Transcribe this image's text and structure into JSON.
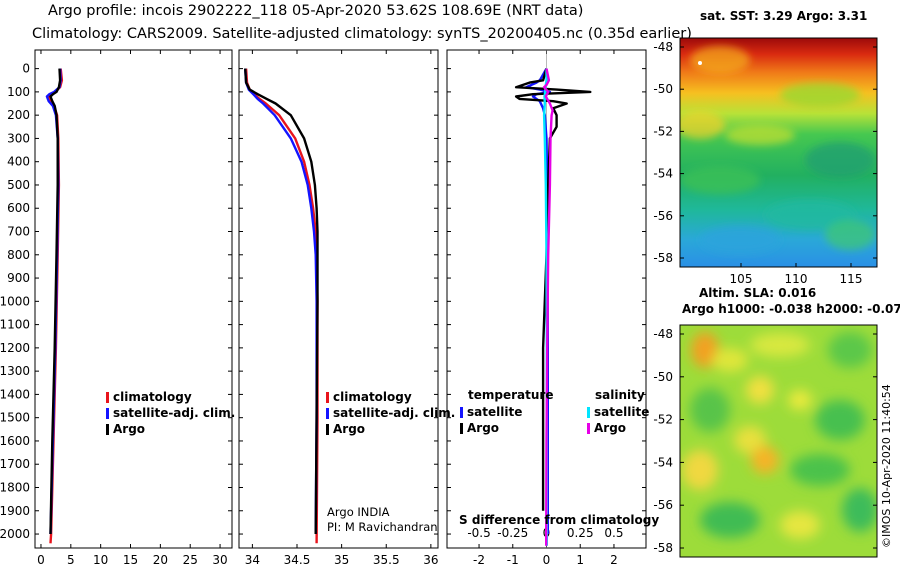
{
  "title": {
    "line1": "Argo profile: incois 2902222_118 05-Apr-2020 53.62S 108.69E (NRT data)",
    "line2": "Climatology: CARS2009. Satellite-adjusted climatology: synTS_20200405.nc (0.35d earlier)"
  },
  "colors": {
    "climatology": "#e8141c",
    "satellite": "#1414ff",
    "argo": "#000000",
    "satellite_sal": "#00e5ff",
    "argo_sal": "#e600e6"
  },
  "chart_data": [
    {
      "type": "line",
      "name": "temperature-profile",
      "ylabel": "",
      "yticks": [
        0,
        100,
        200,
        300,
        400,
        500,
        600,
        700,
        800,
        900,
        1000,
        1100,
        1200,
        1300,
        1400,
        1500,
        1600,
        1700,
        1800,
        1900,
        2000
      ],
      "ylim": [
        -80,
        2060
      ],
      "xticks": [
        0,
        5,
        10,
        15,
        20,
        25,
        30
      ],
      "xlim": [
        -1,
        32
      ],
      "legend": [
        "climatology",
        "satellite-adj. clim.",
        "Argo"
      ],
      "series": [
        {
          "name": "climatology",
          "depth": [
            0,
            50,
            80,
            100,
            110,
            120,
            140,
            160,
            200,
            300,
            500,
            800,
            1200,
            1600,
            2000,
            2040
          ],
          "values": [
            3.3,
            3.5,
            3.2,
            2.4,
            1.5,
            1.2,
            1.6,
            2.2,
            2.7,
            2.9,
            3.0,
            2.8,
            2.5,
            2.1,
            1.7,
            1.6
          ]
        },
        {
          "name": "satellite-adj. clim.",
          "depth": [
            0,
            50,
            80,
            100,
            110,
            120,
            140,
            160,
            200,
            300,
            500,
            800,
            1200,
            1600,
            2000
          ],
          "values": [
            3.2,
            3.3,
            3.1,
            2.2,
            1.4,
            1.0,
            1.3,
            2.0,
            2.5,
            2.8,
            2.9,
            2.7,
            2.4,
            2.0,
            1.6
          ]
        },
        {
          "name": "Argo",
          "depth": [
            0,
            50,
            80,
            100,
            110,
            120,
            140,
            160,
            200,
            300,
            500,
            800,
            1200,
            1600,
            2000
          ],
          "values": [
            3.1,
            3.2,
            3.0,
            2.6,
            2.0,
            1.6,
            1.9,
            2.3,
            2.6,
            2.8,
            2.8,
            2.6,
            2.3,
            1.9,
            1.6
          ]
        }
      ]
    },
    {
      "type": "line",
      "name": "salinity-profile",
      "yticks": [
        0,
        100,
        200,
        300,
        400,
        500,
        600,
        700,
        800,
        900,
        1000,
        1100,
        1200,
        1300,
        1400,
        1500,
        1600,
        1700,
        1800,
        1900,
        2000
      ],
      "ylim": [
        -80,
        2060
      ],
      "xticks": [
        34,
        34.5,
        35,
        35.5,
        36
      ],
      "xlim": [
        33.85,
        36.08
      ],
      "legend": [
        "climatology",
        "satellite-adj. clim.",
        "Argo"
      ],
      "annotation": [
        "Argo INDIA",
        "PI: M Ravichandran"
      ],
      "series": [
        {
          "name": "climatology",
          "depth": [
            0,
            60,
            90,
            110,
            130,
            150,
            200,
            300,
            400,
            500,
            600,
            700,
            800,
            1000,
            1500,
            2040
          ],
          "values": [
            33.93,
            33.94,
            33.97,
            34.02,
            34.08,
            34.15,
            34.3,
            34.48,
            34.58,
            34.64,
            34.68,
            34.71,
            34.72,
            34.73,
            34.73,
            34.72
          ]
        },
        {
          "name": "satellite-adj. clim.",
          "depth": [
            0,
            60,
            90,
            110,
            130,
            150,
            200,
            300,
            400,
            500,
            600,
            700,
            800,
            1000,
            1500,
            2000
          ],
          "values": [
            33.92,
            33.93,
            33.96,
            34.01,
            34.06,
            34.12,
            34.25,
            34.43,
            34.55,
            34.62,
            34.66,
            34.69,
            34.71,
            34.72,
            34.72,
            34.71
          ]
        },
        {
          "name": "Argo",
          "depth": [
            0,
            60,
            90,
            110,
            130,
            150,
            200,
            300,
            400,
            500,
            600,
            700,
            800,
            1000,
            1500,
            2000
          ],
          "values": [
            33.92,
            33.93,
            33.97,
            34.06,
            34.16,
            34.26,
            34.43,
            34.58,
            34.66,
            34.7,
            34.72,
            34.73,
            34.73,
            34.73,
            34.72,
            34.71
          ]
        }
      ]
    },
    {
      "type": "line",
      "name": "difference-from-climatology",
      "yticks": [
        0,
        100,
        200,
        300,
        400,
        500,
        600,
        700,
        800,
        900,
        1000,
        1100,
        1200,
        1300,
        1400,
        1500,
        1600,
        1700,
        1800,
        1900,
        2000
      ],
      "ylim": [
        -80,
        2060
      ],
      "xticks": [
        -2,
        -1,
        0,
        1,
        2
      ],
      "xlim": [
        -2.95,
        2.95
      ],
      "xticks_top": [
        -0.5,
        -0.25,
        0,
        0.25,
        0.5
      ],
      "xlabel": "S difference from climatology",
      "legend": {
        "temperature": [
          "satellite",
          "Argo"
        ],
        "salinity": [
          "satellite",
          "Argo"
        ]
      },
      "series": [
        {
          "name": "temperature satellite",
          "depth": [
            0,
            50,
            60,
            80,
            90,
            100,
            110,
            120,
            140,
            170,
            200,
            300,
            500,
            800,
            1200,
            1600,
            2000
          ],
          "values": [
            0,
            -0.2,
            -0.3,
            -0.6,
            -0.2,
            0.1,
            -0.3,
            -0.4,
            -0.2,
            -0.1,
            -0.05,
            0,
            0.02,
            0.03,
            0.04,
            0.04,
            0.04
          ]
        },
        {
          "name": "temperature Argo",
          "depth": [
            0,
            50,
            60,
            80,
            90,
            100,
            110,
            120,
            130,
            140,
            150,
            170,
            200,
            250,
            300,
            500,
            800,
            1200,
            1600,
            1900
          ],
          "values": [
            0,
            -0.1,
            -0.5,
            -0.9,
            0.3,
            1.3,
            -0.4,
            -0.9,
            -0.8,
            0.2,
            0.6,
            0.2,
            0.3,
            0.3,
            0.1,
            0.05,
            0,
            -0.1,
            -0.1,
            -0.1
          ]
        },
        {
          "name": "salinity satellite",
          "depth": [
            0,
            50,
            80,
            100,
            120,
            150,
            200,
            300,
            500,
            800,
            1200,
            1600,
            2050
          ],
          "values": [
            0,
            0,
            -0.03,
            -0.04,
            -0.06,
            -0.05,
            -0.07,
            -0.05,
            -0.02,
            0,
            0.01,
            0.01,
            0.01
          ]
        },
        {
          "name": "salinity Argo",
          "depth": [
            0,
            50,
            70,
            80,
            100,
            120,
            150,
            180,
            200,
            300,
            500,
            800,
            1200,
            1600,
            2050
          ],
          "values": [
            0,
            0.07,
            0,
            -0.07,
            0.05,
            -0.02,
            0.1,
            0.18,
            0.15,
            0.12,
            0.1,
            0.05,
            0.02,
            0,
            -0.01
          ]
        }
      ]
    }
  ],
  "map_top": {
    "title": "sat. SST: 3.29 Argo: 3.31",
    "yticks": [
      "-48",
      "-50",
      "-52",
      "-54",
      "-56",
      "-58"
    ],
    "xticks": [
      "105",
      "110",
      "115"
    ]
  },
  "map_bottom": {
    "title_line1": "Altim. SLA: 0.016",
    "title_line2": "Argo h1000: -0.038 h2000: -0.07",
    "yticks": [
      "-48",
      "-50",
      "-52",
      "-54",
      "-56",
      "-58"
    ]
  },
  "footer": "©IMOS 10-Apr-2020 11:40:54"
}
